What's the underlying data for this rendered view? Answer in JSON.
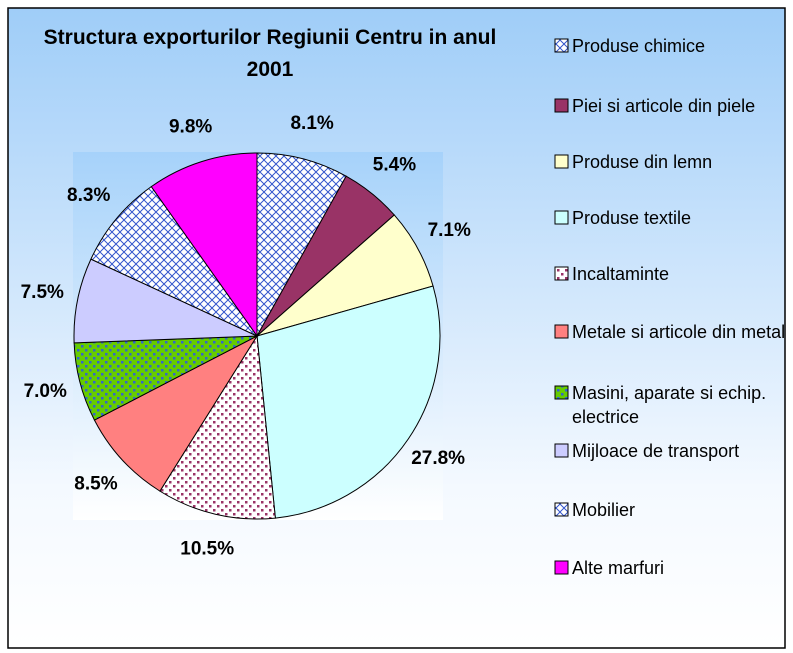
{
  "chart_data": {
    "type": "pie",
    "title": "Structura exporturilor Regiunii Centru in anul 2001",
    "categories": [
      "Produse chimice",
      "Piei si articole din piele",
      "Produse din lemn",
      "Produse textile",
      "Incaltaminte",
      "Metale si articole din metal",
      "Masini, aparate si echip. electrice",
      "Mijloace de transport",
      "Mobilier",
      "Alte marfuri"
    ],
    "values": [
      8.1,
      5.4,
      7.1,
      27.8,
      10.5,
      8.5,
      7.0,
      7.5,
      8.3,
      9.8
    ],
    "value_labels": [
      "8.1%",
      "5.4%",
      "7.1%",
      "27.8%",
      "10.5%",
      "8.5%",
      "7.0%",
      "7.5%",
      "8.3%",
      "9.8%"
    ],
    "colors": [
      "#ffffff",
      "#993366",
      "#ffffcc",
      "#ccffff",
      "#ffffff",
      "#ff8080",
      "#66cc00",
      "#ccccff",
      "#ffffff",
      "#ff00ff"
    ],
    "patterns": [
      "crosshatch",
      null,
      null,
      null,
      "dots",
      null,
      "dots",
      null,
      "crosshatch",
      null
    ],
    "legend": "right"
  }
}
